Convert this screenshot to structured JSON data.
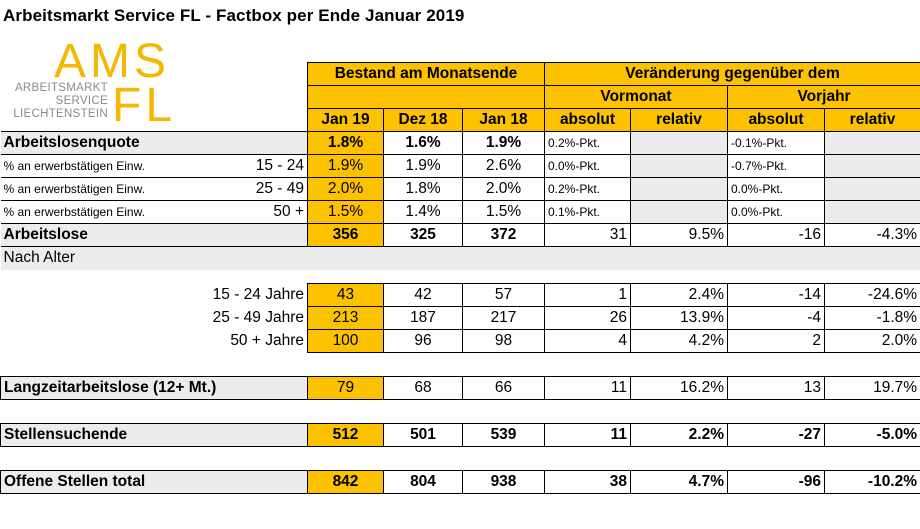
{
  "title": "Arbeitsmarkt Service FL - Factbox per Ende Januar 2019",
  "logo": {
    "ams": "AMS",
    "fl": "FL",
    "sub1": "ARBEITSMARKT",
    "sub2": "SERVICE",
    "sub3": "LIECHTENSTEIN"
  },
  "header": {
    "bestand": "Bestand am Monatsende",
    "veraenderung": "Veränderung gegenüber dem",
    "vormonat": "Vormonat",
    "vorjahr": "Vorjahr",
    "cols": [
      "Jan 19",
      "Dez 18",
      "Jan 18",
      "absolut",
      "relativ",
      "absolut",
      "relativ"
    ]
  },
  "rows": {
    "quote": {
      "label": "Arbeitslosenquote",
      "v": [
        "1.8%",
        "1.6%",
        "1.9%",
        "0.2%-Pkt.",
        "",
        "-0.1%-Pkt.",
        ""
      ]
    },
    "q1": {
      "label": "% an erwerbstätigen Einw.",
      "age": "15 - 24",
      "v": [
        "1.9%",
        "1.9%",
        "2.6%",
        "0.0%-Pkt.",
        "",
        "-0.7%-Pkt.",
        ""
      ]
    },
    "q2": {
      "label": "% an erwerbstätigen Einw.",
      "age": "25 - 49",
      "v": [
        "2.0%",
        "1.8%",
        "2.0%",
        "0.2%-Pkt.",
        "",
        "0.0%-Pkt.",
        ""
      ]
    },
    "q3": {
      "label": "% an erwerbstätigen Einw.",
      "age": "50 +",
      "v": [
        "1.5%",
        "1.4%",
        "1.5%",
        "0.1%-Pkt.",
        "",
        "0.0%-Pkt.",
        ""
      ]
    },
    "arbeitslose": {
      "label": "Arbeitslose",
      "v": [
        "356",
        "325",
        "372",
        "31",
        "9.5%",
        "-16",
        "-4.3%"
      ]
    },
    "nach_alter": {
      "label": "Nach Alter"
    },
    "a1": {
      "label": "15 - 24 Jahre",
      "v": [
        "43",
        "42",
        "57",
        "1",
        "2.4%",
        "-14",
        "-24.6%"
      ]
    },
    "a2": {
      "label": "25 - 49 Jahre",
      "v": [
        "213",
        "187",
        "217",
        "26",
        "13.9%",
        "-4",
        "-1.8%"
      ]
    },
    "a3": {
      "label": "50 + Jahre",
      "v": [
        "100",
        "96",
        "98",
        "4",
        "4.2%",
        "2",
        "2.0%"
      ]
    },
    "langzeit": {
      "label": "Langzeitarbeitslose (12+ Mt.)",
      "v": [
        "79",
        "68",
        "66",
        "11",
        "16.2%",
        "13",
        "19.7%"
      ]
    },
    "stellensuchende": {
      "label": "Stellensuchende",
      "v": [
        "512",
        "501",
        "539",
        "11",
        "2.2%",
        "-27",
        "-5.0%"
      ]
    },
    "offene": {
      "label": "Offene Stellen total",
      "v": [
        "842",
        "804",
        "938",
        "38",
        "4.7%",
        "-96",
        "-10.2%"
      ]
    }
  }
}
